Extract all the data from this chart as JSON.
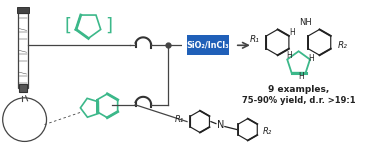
{
  "bg_color": "#ffffff",
  "teal": "#3cb88a",
  "blue": "#2060b8",
  "black": "#222222",
  "gray": "#666666",
  "reactor_label": "SiO₂/InCl₃",
  "product_text1": "9 examples,",
  "product_text2": "75-90% yield, d.r. >19:1",
  "line_color": "#444444",
  "pump_color": "#333333",
  "reactor_color": "#2060b8",
  "structure_lw": 1.0
}
